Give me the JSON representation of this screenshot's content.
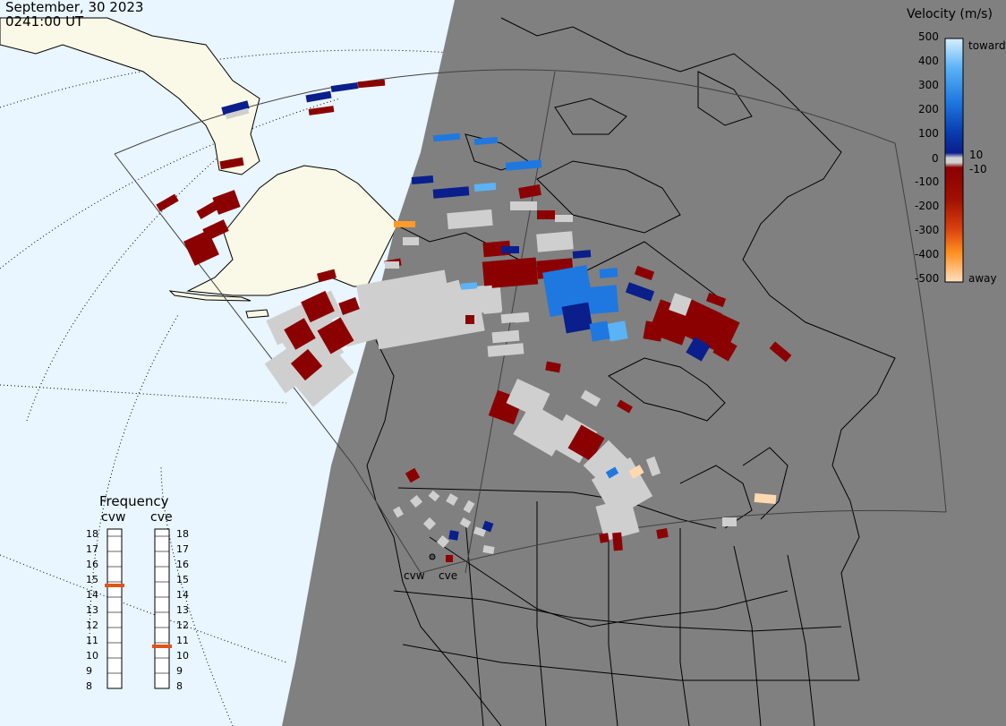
{
  "header": {
    "date": "September, 30 2023",
    "time": "0241:00 UT"
  },
  "velocity_scale": {
    "title": "Velocity (m/s)",
    "tick_labels": [
      "500",
      "400",
      "300",
      "200",
      "100",
      "10",
      "0",
      "-10",
      "-100",
      "-200",
      "-300",
      "-400",
      "-500"
    ],
    "toward_label": "toward",
    "away_label": "away",
    "colors": {
      "toward_light": "#cfe9ff",
      "toward_mid": "#1e78e0",
      "toward_dark": "#0a1e8c",
      "near_zero": "#d0d0d0",
      "away_dark": "#8b0000",
      "away_mid": "#e06010",
      "away_light": "#ffd8b0"
    }
  },
  "frequency_panel": {
    "title": "Frequency",
    "radars": [
      {
        "name": "cvw",
        "current_mhz": 15
      },
      {
        "name": "cve",
        "current_mhz": 11
      }
    ],
    "tick_labels": [
      "18",
      "17",
      "16",
      "15",
      "14",
      "13",
      "12",
      "11",
      "10",
      "9",
      "8"
    ],
    "marker_color": "#e0541a"
  },
  "map": {
    "radar_site_labels": [
      "cvw",
      "cve"
    ],
    "colors": {
      "night_shade": "#808080",
      "day_ocean": "#e9f5ff",
      "day_land": "#faf8e6",
      "fov_outline": "#404040"
    }
  }
}
